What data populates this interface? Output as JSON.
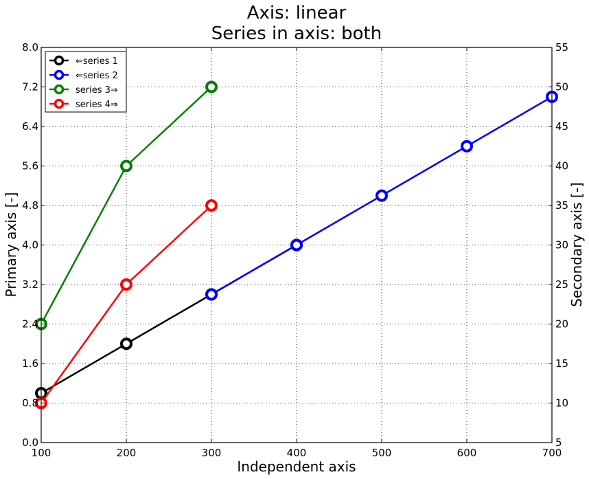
{
  "chart_data": {
    "type": "line",
    "title_line1": "Axis: linear",
    "title_line2": "Series in axis: both",
    "xlabel": "Independent axis",
    "ylabel_left": "Primary axis [-]",
    "ylabel_right": "Secondary axis [-]",
    "xlim": [
      100,
      700
    ],
    "ylim_left": [
      0.0,
      8.0
    ],
    "ylim_right": [
      5,
      55
    ],
    "xticks": [
      "100",
      "200",
      "300",
      "400",
      "500",
      "600",
      "700"
    ],
    "xtick_values": [
      100,
      200,
      300,
      400,
      500,
      600,
      700
    ],
    "yticks_left": [
      "0.0",
      "0.8",
      "1.6",
      "2.4",
      "3.2",
      "4.0",
      "4.8",
      "5.6",
      "6.4",
      "7.2",
      "8.0"
    ],
    "ytick_values_left": [
      0.0,
      0.8,
      1.6,
      2.4,
      3.2,
      4.0,
      4.8,
      5.6,
      6.4,
      7.2,
      8.0
    ],
    "yticks_right": [
      "5",
      "10",
      "15",
      "20",
      "25",
      "30",
      "35",
      "40",
      "45",
      "50",
      "55"
    ],
    "ytick_values_right": [
      5,
      10,
      15,
      20,
      25,
      30,
      35,
      40,
      45,
      50,
      55
    ],
    "grid": true,
    "legend_position": "top-left",
    "series": [
      {
        "name": "⇐series 1",
        "axis": "left",
        "color": "#000000",
        "x": [
          100,
          200,
          300,
          400
        ],
        "y": [
          1.0,
          2.0,
          3.0,
          4.0
        ]
      },
      {
        "name": "⇐series 2",
        "axis": "left",
        "color": "#0000ff",
        "x": [
          300,
          400,
          500,
          600,
          700
        ],
        "y": [
          3.0,
          4.0,
          5.0,
          6.0,
          7.0
        ]
      },
      {
        "name": "series 3⇒",
        "axis": "right",
        "color": "#008000",
        "x": [
          100,
          200,
          300
        ],
        "y": [
          20,
          40,
          50
        ]
      },
      {
        "name": "series 4⇒",
        "axis": "right",
        "color": "#ff0000",
        "x": [
          100,
          200,
          300
        ],
        "y": [
          10,
          25,
          35
        ]
      }
    ]
  }
}
